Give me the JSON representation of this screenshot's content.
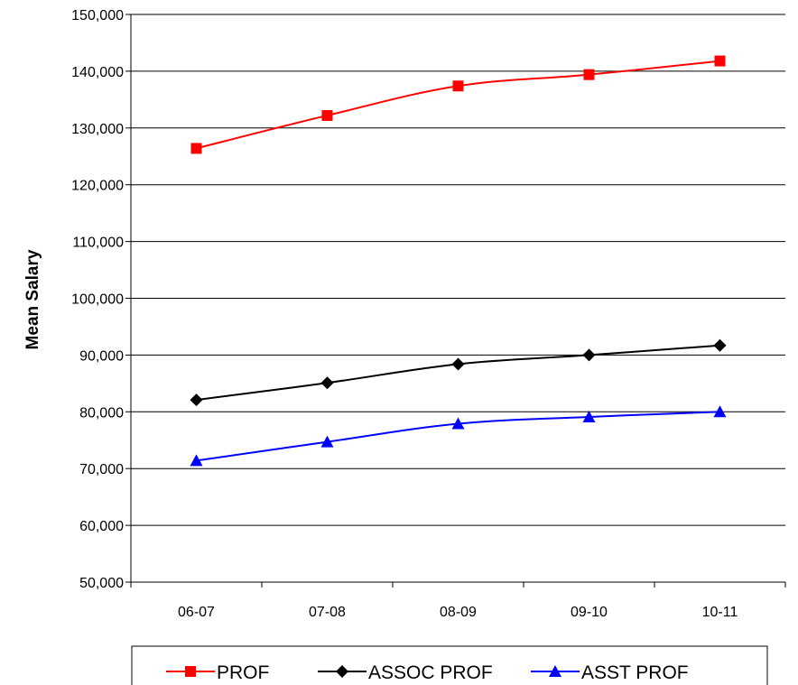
{
  "chart_data": {
    "type": "line",
    "title": "",
    "xlabel": "",
    "ylabel": "Mean Salary",
    "categories": [
      "06-07",
      "07-08",
      "08-09",
      "09-10",
      "10-11"
    ],
    "ylim": [
      50000,
      150000
    ],
    "y_tick_step": 10000,
    "y_tick_labels": [
      "50,000",
      "60,000",
      "70,000",
      "80,000",
      "90,000",
      "100,000",
      "110,000",
      "120,000",
      "130,000",
      "140,000",
      "150,000"
    ],
    "grid": true,
    "legend_position": "bottom",
    "series": [
      {
        "name": "PROF",
        "color": "#ff0000",
        "marker": "square",
        "values": [
          126400,
          132200,
          137400,
          139400,
          141800
        ]
      },
      {
        "name": "ASSOC PROF",
        "color": "#000000",
        "marker": "diamond",
        "values": [
          82100,
          85100,
          88400,
          90000,
          91700
        ]
      },
      {
        "name": "ASST PROF",
        "color": "#0000ff",
        "marker": "triangle",
        "values": [
          71400,
          74700,
          77900,
          79100,
          80000
        ]
      }
    ]
  }
}
